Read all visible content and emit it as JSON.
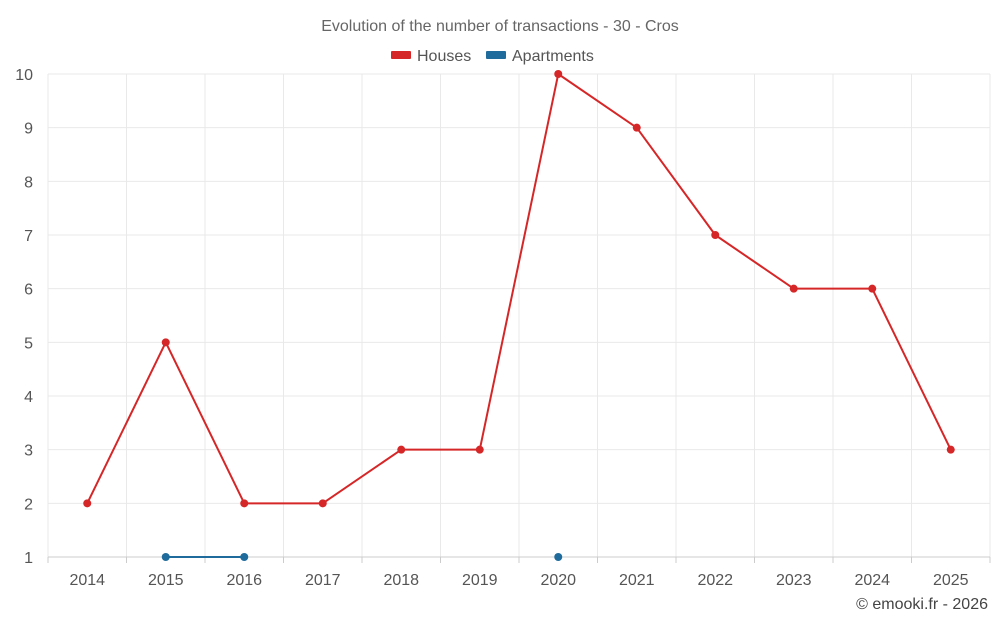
{
  "chart_data": {
    "type": "line",
    "title": "Evolution of the number of transactions - 30 - Cros",
    "categories": [
      "2014",
      "2015",
      "2016",
      "2017",
      "2018",
      "2019",
      "2020",
      "2021",
      "2022",
      "2023",
      "2024",
      "2025"
    ],
    "ylim": [
      1,
      10
    ],
    "yticks": [
      1,
      2,
      3,
      4,
      5,
      6,
      7,
      8,
      9,
      10
    ],
    "grid": true,
    "legend_position": "top-center",
    "series": [
      {
        "name": "Houses",
        "color": "#d62728",
        "values": [
          2,
          5,
          2,
          2,
          3,
          3,
          10,
          9,
          7,
          6,
          6,
          3
        ]
      },
      {
        "name": "Apartments",
        "color": "#1f6c9c",
        "values": [
          null,
          1,
          1,
          null,
          null,
          null,
          1,
          null,
          null,
          null,
          null,
          null
        ]
      }
    ],
    "xlabel": "",
    "ylabel": ""
  },
  "credit": "© emooki.fr - 2026"
}
